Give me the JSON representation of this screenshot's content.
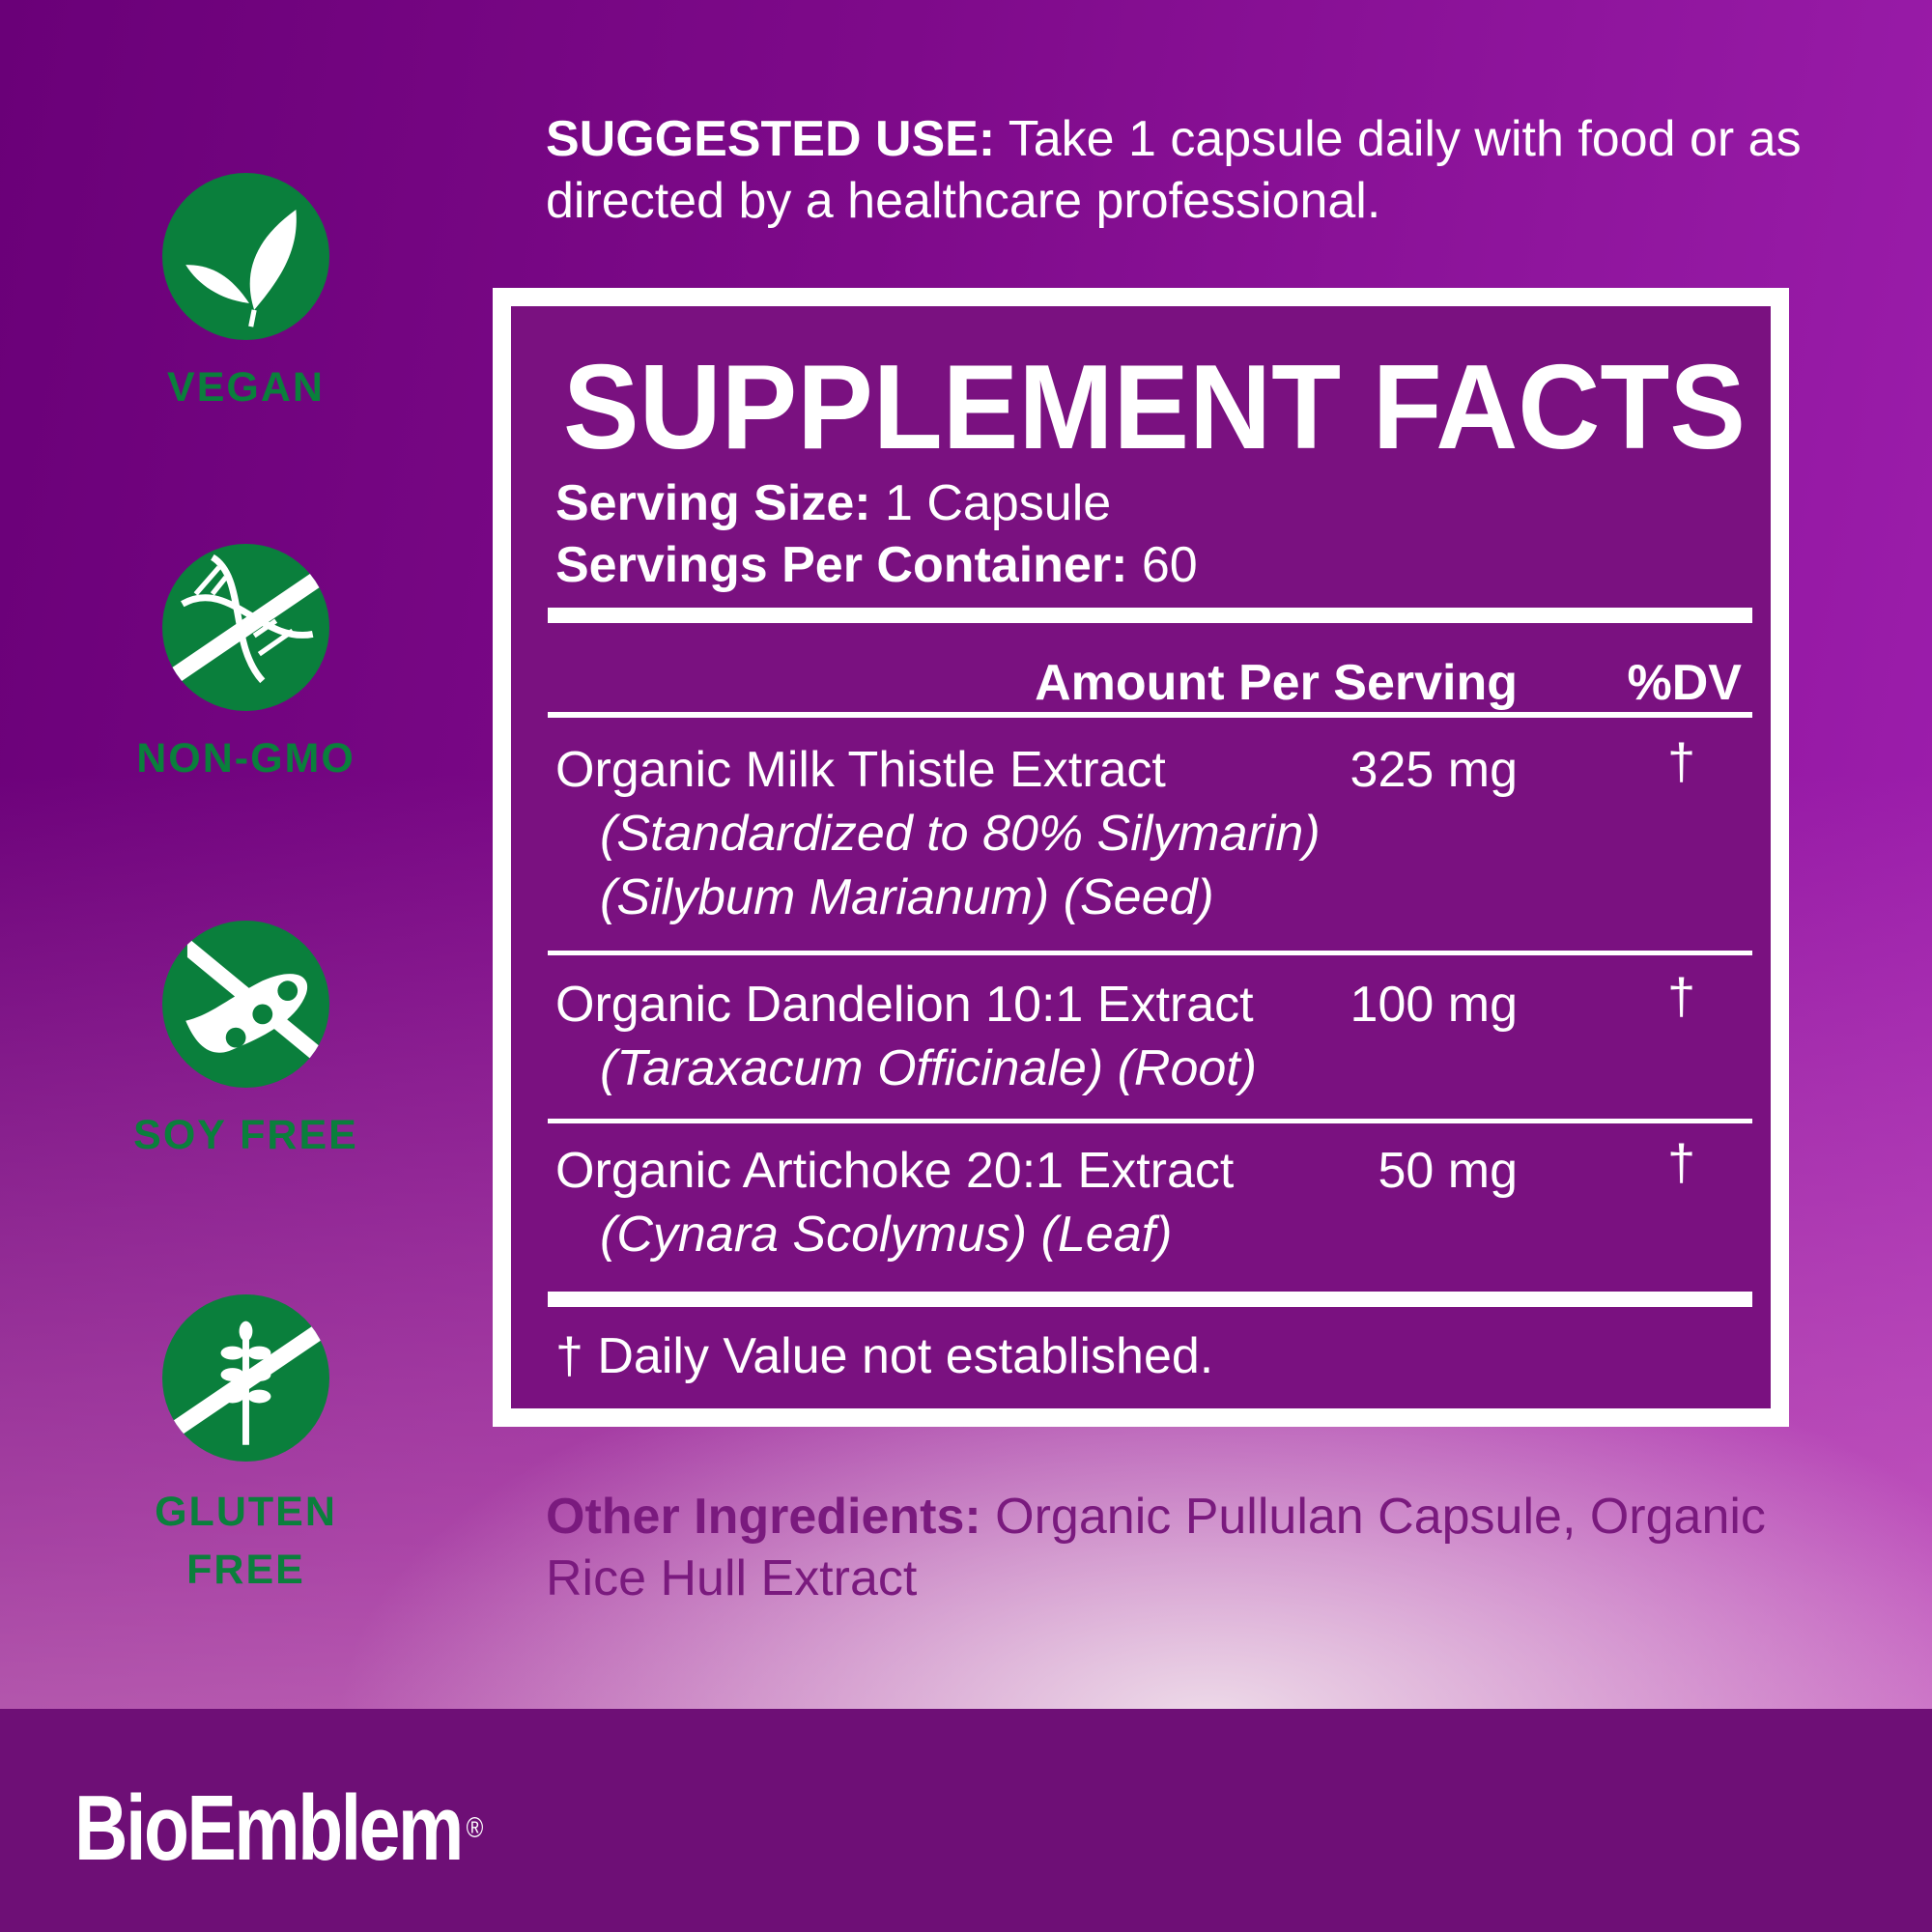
{
  "badges": [
    {
      "label": "VEGAN",
      "icon": "leaf-icon"
    },
    {
      "label": "NON-GMO",
      "icon": "dna-crossed-icon"
    },
    {
      "label": "SOY FREE",
      "icon": "soybean-crossed-icon"
    },
    {
      "label": "GLUTEN FREE",
      "line1": "GLUTEN",
      "line2": "FREE",
      "icon": "wheat-crossed-icon"
    }
  ],
  "suggested_use": {
    "label": "SUGGESTED USE:",
    "text": " Take 1 capsule daily with food or as directed by a healthcare professional."
  },
  "facts": {
    "title": "SUPPLEMENT FACTS",
    "serving_size_label": "Serving Size:",
    "serving_size": " 1 Capsule",
    "servings_label": "Servings Per Container:",
    "servings": " 60",
    "col_amount": "Amount Per Serving",
    "col_dv": "%DV",
    "rows": [
      {
        "name": "Organic Milk Thistle Extract",
        "sub1": "(Standardized to 80% Silymarin)",
        "sub2": "(Silybum Marianum) (Seed)",
        "amount": "325 mg",
        "dv": "†"
      },
      {
        "name": "Organic Dandelion 10:1 Extract",
        "sub1": "(Taraxacum Officinale) (Root)",
        "amount": "100 mg",
        "dv": "†"
      },
      {
        "name": "Organic Artichoke 20:1 Extract",
        "sub1": "(Cynara Scolymus) (Leaf)",
        "amount": "50 mg",
        "dv": "†"
      }
    ],
    "footnote": "† Daily Value not established."
  },
  "other_ingredients": {
    "label": "Other Ingredients:",
    "text": " Organic Pullulan Capsule, Organic Rice Hull Extract"
  },
  "brand": {
    "name": "BioEmblem",
    "mark": "®"
  },
  "colors": {
    "badge_green": "#0a7f3c",
    "panel_purple": "#7a1180",
    "footer_purple": "#6e0f76"
  }
}
